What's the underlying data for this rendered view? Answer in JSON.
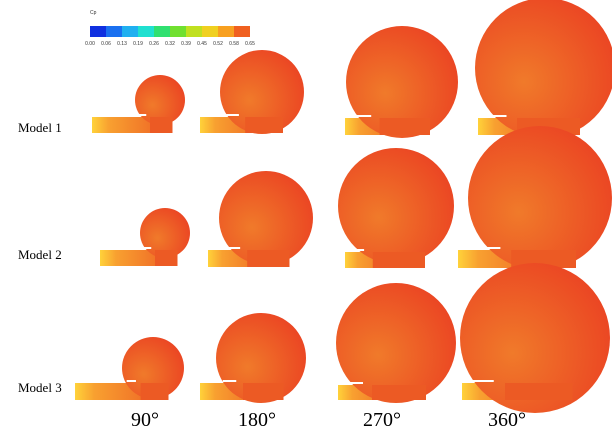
{
  "legend": {
    "title": "Cp",
    "ticks": [
      "0.00",
      "0.06",
      "0.13",
      "0.19",
      "0.26",
      "0.32",
      "0.39",
      "0.45",
      "0.52",
      "0.58",
      "0.65"
    ]
  },
  "rows": [
    "Model 1",
    "Model 2",
    "Model 3"
  ],
  "columns": [
    "90°",
    "180°",
    "270°",
    "360°"
  ]
}
